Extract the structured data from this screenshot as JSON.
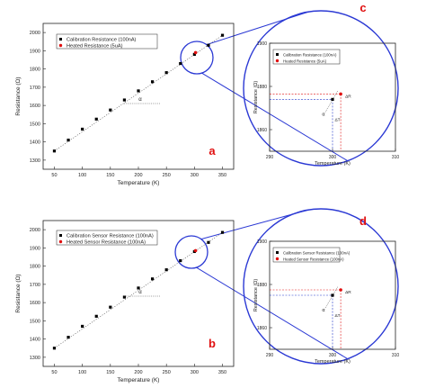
{
  "colors": {
    "axis": "#222222",
    "zoom": "#2b39d4",
    "calib": "#000000",
    "heated": "#e01010",
    "label_letter": "#e01010",
    "dashed_blue": "#1f35c9",
    "dashed_red": "#e01010"
  },
  "chart_data": [
    {
      "id": "a",
      "type": "scatter",
      "panel_letter": "a",
      "xlabel": "Temperature (K)",
      "ylabel": "Resistance (Ω)",
      "xlim": [
        30,
        370
      ],
      "ylim": [
        1250,
        2050
      ],
      "xticks": [
        "50",
        "100",
        "150",
        "200",
        "250",
        "300",
        "350"
      ],
      "yticks": [
        "1300",
        "1400",
        "1500",
        "1600",
        "1700",
        "1800",
        "1900",
        "2000"
      ],
      "series": [
        {
          "name": "Calibration Resistance (100nA)",
          "x": [
            50,
            75,
            100,
            125,
            150,
            175,
            200,
            225,
            250,
            275,
            300,
            325,
            350
          ],
          "y": [
            1350,
            1410,
            1470,
            1525,
            1575,
            1630,
            1680,
            1730,
            1780,
            1830,
            1880,
            1930,
            1985
          ]
        },
        {
          "name": "Heated Resistance (5uA)",
          "x": [
            302
          ],
          "y": [
            1890
          ]
        }
      ],
      "annotation_alpha": "α",
      "legend_position": "top-left"
    },
    {
      "id": "b",
      "type": "scatter",
      "panel_letter": "b",
      "xlabel": "Temperature (K)",
      "ylabel": "Resistance (Ω)",
      "xlim": [
        30,
        370
      ],
      "ylim": [
        1250,
        2050
      ],
      "xticks": [
        "50",
        "100",
        "150",
        "200",
        "250",
        "300",
        "350"
      ],
      "yticks": [
        "1300",
        "1400",
        "1500",
        "1600",
        "1700",
        "1800",
        "1900",
        "2000"
      ],
      "series": [
        {
          "name": "Calibration Sensor Resistance (100nA)",
          "x": [
            50,
            75,
            100,
            125,
            150,
            175,
            200,
            225,
            250,
            275,
            300,
            325,
            350
          ],
          "y": [
            1350,
            1410,
            1470,
            1525,
            1575,
            1630,
            1680,
            1730,
            1780,
            1830,
            1880,
            1930,
            1985
          ]
        },
        {
          "name": "Heated Sensor Resistance (100nA)",
          "x": [
            302
          ],
          "y": [
            1885
          ]
        }
      ],
      "annotation_alpha": "α",
      "legend_position": "top-left"
    },
    {
      "id": "c",
      "type": "scatter",
      "panel_letter": "c",
      "xlabel": "Temperature (K)",
      "ylabel": "Resistance (Ω)",
      "xlim": [
        290,
        310
      ],
      "ylim": [
        1850,
        1900
      ],
      "xticks": [
        "290",
        "300",
        "310"
      ],
      "yticks": [
        "1860",
        "1880",
        "1900"
      ],
      "series": [
        {
          "name": "Calibration Resistance (100nA)",
          "x": [
            300
          ],
          "y": [
            1874
          ]
        },
        {
          "name": "Heated Resistance (5uA)",
          "x": [
            301.3
          ],
          "y": [
            1876.5
          ]
        }
      ],
      "annotations": {
        "alpha": "α",
        "delta_t": "ΔT",
        "delta_r": "ΔR"
      },
      "legend_position": "top-left"
    },
    {
      "id": "d",
      "type": "scatter",
      "panel_letter": "d",
      "xlabel": "Temperature (K)",
      "ylabel": "Resistance (Ω)",
      "xlim": [
        290,
        310
      ],
      "ylim": [
        1850,
        1900
      ],
      "xticks": [
        "290",
        "300",
        "310"
      ],
      "yticks": [
        "1860",
        "1880",
        "1900"
      ],
      "series": [
        {
          "name": "Calibration Sensor Resistance (100nA)",
          "x": [
            300
          ],
          "y": [
            1875
          ]
        },
        {
          "name": "Heated Sensor Resistance (100nA)",
          "x": [
            301.3
          ],
          "y": [
            1877.5
          ]
        }
      ],
      "annotations": {
        "alpha": "α",
        "delta_t": "ΔT",
        "delta_r": "ΔR"
      },
      "legend_position": "top-left"
    }
  ]
}
